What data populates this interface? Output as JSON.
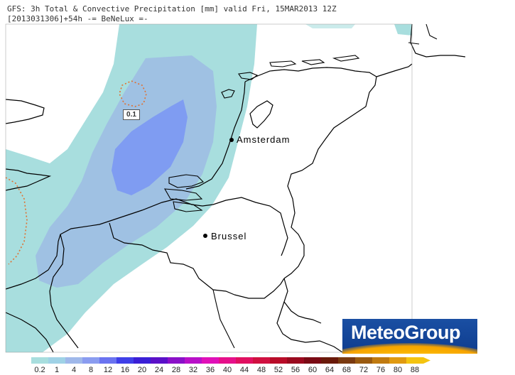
{
  "header": {
    "line1": "GFS: 3h Total & Convective Precipitation [mm] valid Fri, 15MAR2013 12Z",
    "line2": "[2013031306]+54h -= BeNeLux =-"
  },
  "cities": [
    {
      "id": "amsterdam",
      "name": "Amsterdam"
    },
    {
      "id": "brussel",
      "name": "Brussel"
    }
  ],
  "contour_label": "0.1",
  "logo": {
    "text": "MeteoGroup"
  },
  "colorbar": {
    "labels": [
      "0.2",
      "1",
      "4",
      "8",
      "12",
      "16",
      "20",
      "24",
      "28",
      "32",
      "36",
      "40",
      "44",
      "48",
      "52",
      "56",
      "60",
      "64",
      "68",
      "72",
      "76",
      "80",
      "88"
    ],
    "colors": [
      "#a8dede",
      "#9fd2e6",
      "#9fb8ea",
      "#8a9cf0",
      "#6a73f0",
      "#3f3fe8",
      "#3a1fd6",
      "#5a10c8",
      "#8a10c8",
      "#b810c8",
      "#e010b8",
      "#e6108a",
      "#e01060",
      "#d01040",
      "#b80c28",
      "#9a0a1e",
      "#7a0a14",
      "#6a1a0a",
      "#7a3a10",
      "#9a5a10",
      "#c07a10",
      "#e09a10",
      "#f4c410"
    ]
  }
}
